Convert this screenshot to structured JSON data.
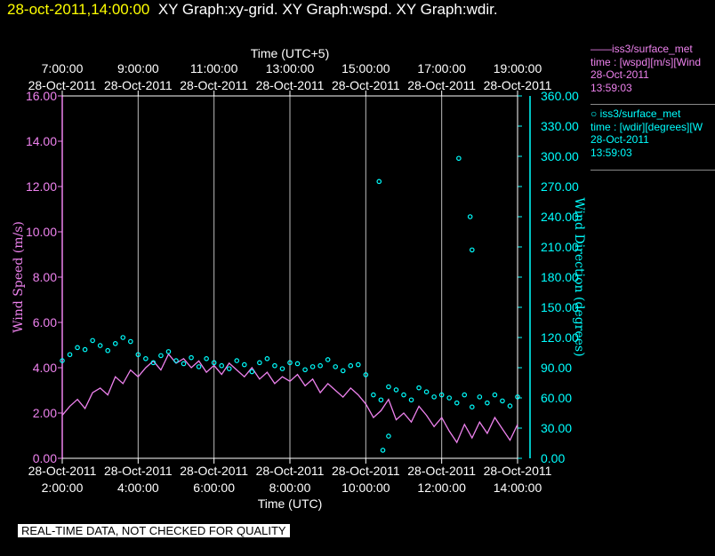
{
  "header": {
    "timestamp": "28-oct-2011,14:00:00",
    "graph_title": "XY Graph:xy-grid.  XY Graph:wspd.  XY Graph:wdir."
  },
  "legend": [
    {
      "name": "——iss3/surface_met",
      "desc": "time : [wspd][m/s][Wind",
      "date": "28-Oct-2011",
      "time": "13:59:03",
      "color": "#ee82ee"
    },
    {
      "name": "○ iss3/surface_met",
      "desc": "time : [wdir][degrees][W",
      "date": "28-Oct-2011",
      "time": "13:59:03",
      "color": "#00ffff"
    }
  ],
  "qc_notice": "REAL-TIME DATA, NOT CHECKED FOR QUALITY",
  "chart_data": {
    "type": "line",
    "top_axis": {
      "title": "Time (UTC+5)",
      "ticks": [
        {
          "time": "7:00:00",
          "date": "28-Oct-2011",
          "hour": 2
        },
        {
          "time": "9:00:00",
          "date": "28-Oct-2011",
          "hour": 4
        },
        {
          "time": "11:00:00",
          "date": "28-Oct-2011",
          "hour": 6
        },
        {
          "time": "13:00:00",
          "date": "28-Oct-2011",
          "hour": 8
        },
        {
          "time": "15:00:00",
          "date": "28-Oct-2011",
          "hour": 10
        },
        {
          "time": "17:00:00",
          "date": "28-Oct-2011",
          "hour": 12
        },
        {
          "time": "19:00:00",
          "date": "28-Oct-2011",
          "hour": 14
        }
      ]
    },
    "bottom_axis": {
      "title": "Time (UTC)",
      "range_hours": [
        2,
        14
      ],
      "ticks": [
        {
          "time": "2:00:00",
          "date": "28-Oct-2011",
          "hour": 2
        },
        {
          "time": "4:00:00",
          "date": "28-Oct-2011",
          "hour": 4
        },
        {
          "time": "6:00:00",
          "date": "28-Oct-2011",
          "hour": 6
        },
        {
          "time": "8:00:00",
          "date": "28-Oct-2011",
          "hour": 8
        },
        {
          "time": "10:00:00",
          "date": "28-Oct-2011",
          "hour": 10
        },
        {
          "time": "12:00:00",
          "date": "28-Oct-2011",
          "hour": 12
        },
        {
          "time": "14:00:00",
          "date": "28-Oct-2011",
          "hour": 14
        }
      ]
    },
    "y_left": {
      "label": "Wind Speed (m/s)",
      "ylim": [
        0,
        16
      ],
      "ticks": [
        "0.00",
        "2.00",
        "4.00",
        "6.00",
        "8.00",
        "10.00",
        "12.00",
        "14.00",
        "16.00"
      ]
    },
    "y_right": {
      "label": "Wind Direction (degrees)",
      "ylim": [
        0,
        360
      ],
      "ticks": [
        "0.00",
        "30.00",
        "60.00",
        "90.00",
        "120.00",
        "150.00",
        "180.00",
        "210.00",
        "240.00",
        "270.00",
        "300.00",
        "330.00",
        "360.00"
      ]
    },
    "grid": "vertical",
    "series": [
      {
        "name": "wspd",
        "axis": "left",
        "style": "line",
        "color": "#ee82ee",
        "x_hours": [
          2.0,
          2.2,
          2.4,
          2.6,
          2.8,
          3.0,
          3.2,
          3.4,
          3.6,
          3.8,
          4.0,
          4.2,
          4.4,
          4.6,
          4.8,
          5.0,
          5.2,
          5.4,
          5.6,
          5.8,
          6.0,
          6.2,
          6.4,
          6.6,
          6.8,
          7.0,
          7.2,
          7.4,
          7.6,
          7.8,
          8.0,
          8.2,
          8.4,
          8.6,
          8.8,
          9.0,
          9.2,
          9.4,
          9.6,
          9.8,
          10.0,
          10.2,
          10.4,
          10.6,
          10.8,
          11.0,
          11.2,
          11.4,
          11.6,
          11.8,
          12.0,
          12.2,
          12.4,
          12.6,
          12.8,
          13.0,
          13.2,
          13.4,
          13.6,
          13.8,
          14.0
        ],
        "values": [
          1.9,
          2.3,
          2.6,
          2.2,
          2.9,
          3.1,
          2.8,
          3.6,
          3.3,
          3.9,
          3.6,
          4.0,
          4.3,
          3.9,
          4.6,
          4.2,
          4.4,
          4.0,
          4.3,
          3.8,
          4.1,
          3.7,
          4.2,
          3.9,
          3.6,
          4.0,
          3.5,
          3.8,
          3.3,
          3.6,
          3.4,
          3.7,
          3.2,
          3.5,
          2.9,
          3.3,
          3.0,
          2.7,
          3.1,
          2.8,
          2.4,
          1.8,
          2.1,
          2.6,
          1.7,
          2.0,
          1.6,
          2.3,
          1.9,
          1.4,
          1.8,
          1.2,
          0.7,
          1.5,
          0.9,
          1.6,
          1.1,
          1.8,
          1.3,
          0.8,
          1.5
        ]
      },
      {
        "name": "wdir",
        "axis": "right",
        "style": "scatter",
        "color": "#00ffff",
        "x_hours": [
          2.0,
          2.2,
          2.4,
          2.6,
          2.8,
          3.0,
          3.2,
          3.4,
          3.6,
          3.8,
          4.0,
          4.2,
          4.4,
          4.6,
          4.8,
          5.0,
          5.2,
          5.4,
          5.6,
          5.8,
          6.0,
          6.2,
          6.4,
          6.6,
          6.8,
          7.0,
          7.2,
          7.4,
          7.6,
          7.8,
          8.0,
          8.2,
          8.4,
          8.6,
          8.8,
          9.0,
          9.2,
          9.4,
          9.6,
          9.8,
          10.0,
          10.2,
          10.4,
          10.6,
          10.8,
          11.0,
          11.2,
          11.4,
          11.6,
          11.8,
          12.0,
          12.2,
          12.4,
          12.6,
          12.8,
          13.0,
          13.2,
          13.4,
          13.6,
          13.8,
          14.0,
          10.35,
          10.6,
          10.45,
          12.45,
          12.75,
          12.8
        ],
        "values": [
          97,
          103,
          110,
          108,
          117,
          112,
          107,
          114,
          120,
          116,
          103,
          99,
          95,
          102,
          106,
          97,
          94,
          100,
          91,
          99,
          95,
          92,
          89,
          97,
          93,
          86,
          95,
          99,
          92,
          89,
          95,
          94,
          88,
          91,
          92,
          98,
          91,
          87,
          92,
          93,
          83,
          63,
          58,
          71,
          68,
          63,
          58,
          70,
          66,
          61,
          63,
          60,
          55,
          63,
          51,
          61,
          55,
          63,
          57,
          52,
          61,
          275,
          22,
          8,
          298,
          240,
          207
        ]
      }
    ]
  }
}
